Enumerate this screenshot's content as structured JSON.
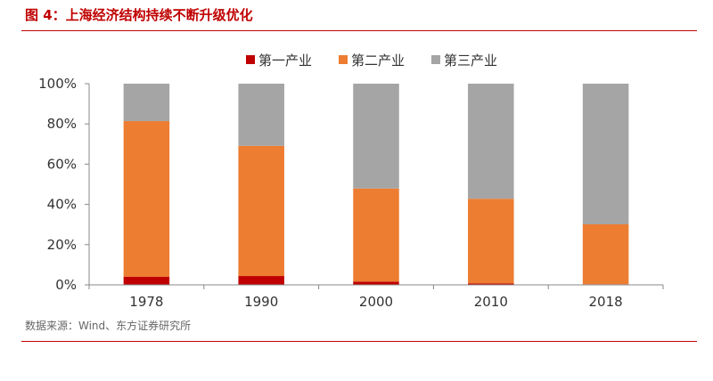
{
  "figure": {
    "title": "图 4：上海经济结构持续不断升级优化",
    "source": "数据来源：Wind、东方证券研究所"
  },
  "colors": {
    "accent": "#c00000",
    "series": [
      "#c00000",
      "#ed7d31",
      "#a5a5a5"
    ]
  },
  "chart_data": {
    "type": "bar",
    "stacked": true,
    "categories": [
      "1978",
      "1990",
      "2000",
      "2010",
      "2018"
    ],
    "series": [
      {
        "name": "第一产业",
        "values": [
          4.0,
          4.4,
          1.6,
          0.7,
          0.3
        ]
      },
      {
        "name": "第二产业",
        "values": [
          77.4,
          64.7,
          46.3,
          42.1,
          29.8
        ]
      },
      {
        "name": "第三产业",
        "values": [
          18.6,
          30.9,
          52.1,
          57.2,
          69.9
        ]
      }
    ],
    "ylim": [
      0,
      100
    ],
    "yticks": [
      "0%",
      "20%",
      "40%",
      "60%",
      "80%",
      "100%"
    ],
    "grid": false,
    "legend": "top",
    "xlabel": "",
    "ylabel": ""
  }
}
